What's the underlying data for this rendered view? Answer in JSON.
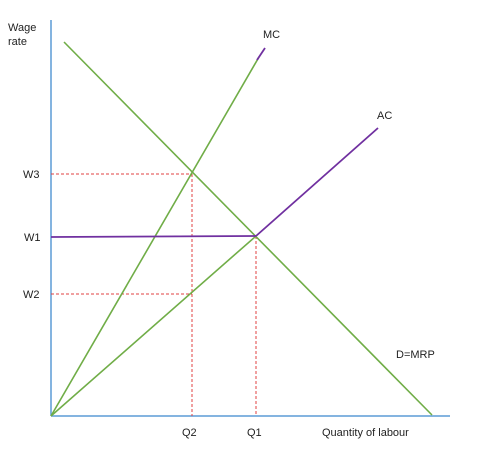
{
  "axes": {
    "y_label_line1": "Wage",
    "y_label_line2": "rate",
    "x_label": "Quantity of labour"
  },
  "curves": {
    "mc_label": "MC",
    "ac_label": "AC",
    "demand_label": "D=MRP"
  },
  "wage_ticks": {
    "w3": "W3",
    "w1": "W1",
    "w2": "W2"
  },
  "quantity_ticks": {
    "q2": "Q2",
    "q1": "Q1"
  },
  "colors": {
    "axis": "#5b9bd5",
    "green_line": "#70ad47",
    "purple_line": "#7030a0",
    "dashed_guide": "#e04040",
    "text": "#222222"
  }
}
